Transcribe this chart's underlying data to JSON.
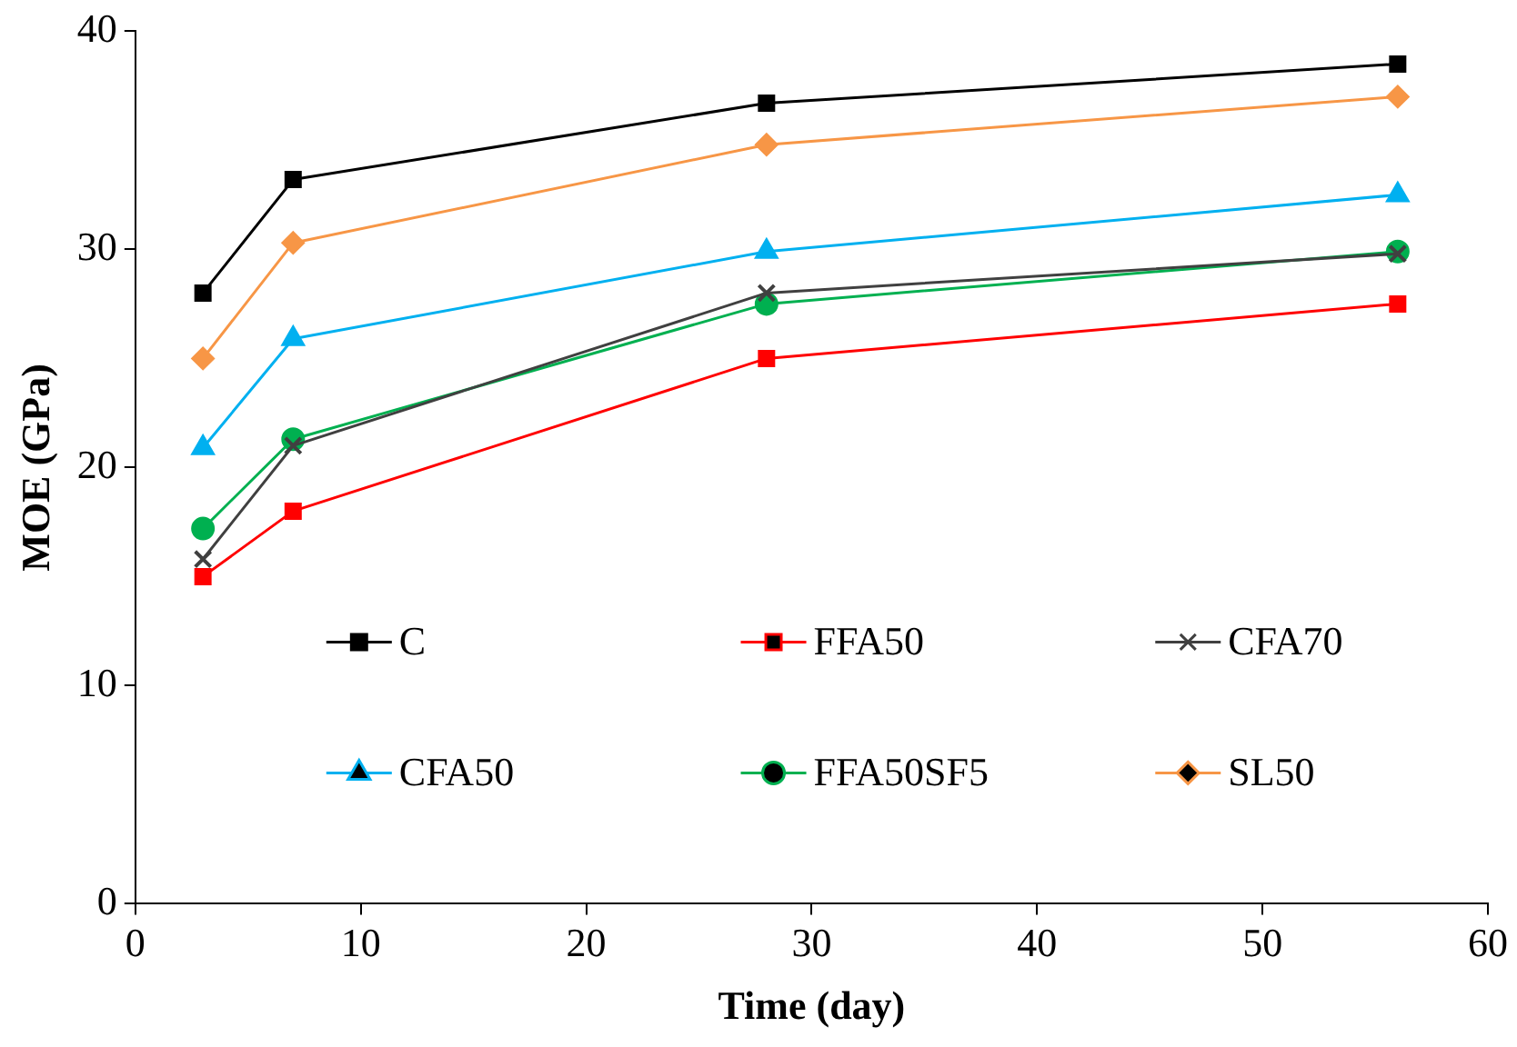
{
  "chart_data": {
    "type": "line",
    "xlabel": "Time (day)",
    "ylabel": "MOE (GPa)",
    "x": [
      3,
      7,
      28,
      56
    ],
    "xlim": [
      0,
      60
    ],
    "xticks": [
      0,
      10,
      20,
      30,
      40,
      50,
      60
    ],
    "ylim": [
      0,
      40
    ],
    "yticks": [
      0,
      10,
      20,
      30,
      40
    ],
    "grid": false,
    "legend": "bottom",
    "series": [
      {
        "name": "C",
        "color": "#000000",
        "marker": "square",
        "values": [
          28.0,
          33.2,
          36.7,
          38.5
        ]
      },
      {
        "name": "FFA50",
        "color": "#ff0000",
        "marker": "square",
        "values": [
          15.0,
          18.0,
          25.0,
          27.5
        ]
      },
      {
        "name": "CFA70",
        "color": "#404040",
        "marker": "cross",
        "values": [
          15.8,
          21.0,
          28.0,
          29.8
        ]
      },
      {
        "name": "CFA50",
        "color": "#00b0f0",
        "marker": "triangle",
        "values": [
          20.9,
          25.9,
          29.9,
          32.5
        ]
      },
      {
        "name": "FFA50SF5",
        "color": "#00b050",
        "marker": "circle",
        "values": [
          17.2,
          21.3,
          27.5,
          29.9
        ]
      },
      {
        "name": "SL50",
        "color": "#f79646",
        "marker": "diamond",
        "values": [
          25.0,
          30.3,
          34.8,
          37.0
        ]
      }
    ]
  }
}
